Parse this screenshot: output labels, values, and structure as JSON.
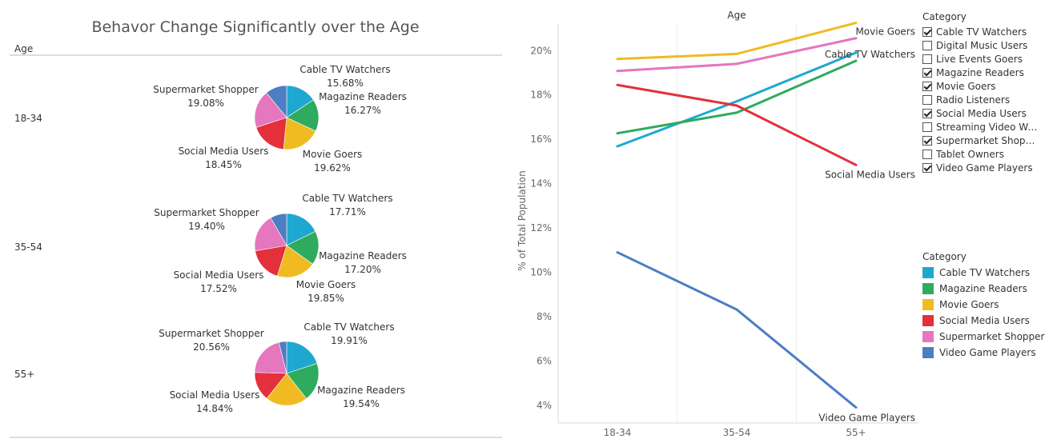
{
  "left_panel": {
    "title": "Behavor Change Significantly over the Age",
    "row_header": "Age"
  },
  "chart_data": [
    {
      "type": "pie",
      "title": "Behavor Change Significantly over the Age",
      "rows": [
        {
          "age": "18-34",
          "slices": [
            {
              "category": "Cable TV Watchers",
              "value": 15.68,
              "label": "15.68%"
            },
            {
              "category": "Magazine Readers",
              "value": 16.27,
              "label": "16.27%"
            },
            {
              "category": "Movie Goers",
              "value": 19.62,
              "label": "19.62%"
            },
            {
              "category": "Social Media Users",
              "value": 18.45,
              "label": "18.45%"
            },
            {
              "category": "Supermarket Shopper",
              "value": 19.08,
              "label": "19.08%"
            },
            {
              "category": "Video Game Players",
              "value": 10.9,
              "label": ""
            }
          ]
        },
        {
          "age": "35-54",
          "slices": [
            {
              "category": "Cable TV Watchers",
              "value": 17.71,
              "label": "17.71%"
            },
            {
              "category": "Magazine Readers",
              "value": 17.2,
              "label": "17.20%"
            },
            {
              "category": "Movie Goers",
              "value": 19.85,
              "label": "19.85%"
            },
            {
              "category": "Social Media Users",
              "value": 17.52,
              "label": "17.52%"
            },
            {
              "category": "Supermarket Shopper",
              "value": 19.4,
              "label": "19.40%"
            },
            {
              "category": "Video Game Players",
              "value": 8.32,
              "label": ""
            }
          ]
        },
        {
          "age": "55+",
          "slices": [
            {
              "category": "Cable TV Watchers",
              "value": 19.91,
              "label": "19.91%"
            },
            {
              "category": "Magazine Readers",
              "value": 19.54,
              "label": "19.54%"
            },
            {
              "category": "Movie Goers",
              "value": 21.25,
              "label": ""
            },
            {
              "category": "Social Media Users",
              "value": 14.84,
              "label": "14.84%"
            },
            {
              "category": "Supermarket Shopper",
              "value": 20.56,
              "label": "20.56%"
            },
            {
              "category": "Video Game Players",
              "value": 3.9,
              "label": ""
            }
          ]
        }
      ]
    },
    {
      "type": "line",
      "title": "Age",
      "xlabel": "",
      "ylabel": "% of Total Population",
      "categories": [
        "18-34",
        "35-54",
        "55+"
      ],
      "ylim": [
        3.2,
        21.2
      ],
      "yticks": [
        4,
        6,
        8,
        10,
        12,
        14,
        16,
        18,
        20
      ],
      "ytick_labels": [
        "4%",
        "6%",
        "8%",
        "10%",
        "12%",
        "14%",
        "16%",
        "18%",
        "20%"
      ],
      "grid": "vertical",
      "series": [
        {
          "name": "Cable TV Watchers",
          "values": [
            15.68,
            17.71,
            19.91
          ],
          "end_label": "Cable TV Watchers"
        },
        {
          "name": "Magazine Readers",
          "values": [
            16.27,
            17.2,
            19.54
          ],
          "end_label": ""
        },
        {
          "name": "Movie Goers",
          "values": [
            19.62,
            19.85,
            21.25
          ],
          "end_label": "Movie Goers"
        },
        {
          "name": "Social Media Users",
          "values": [
            18.45,
            17.52,
            14.84
          ],
          "end_label": "Social Media Users"
        },
        {
          "name": "Supermarket Shopper",
          "values": [
            19.08,
            19.4,
            20.56
          ],
          "end_label": ""
        },
        {
          "name": "Video Game Players",
          "values": [
            10.9,
            8.32,
            3.9
          ],
          "end_label": "Video Game Players"
        }
      ]
    }
  ],
  "colors": {
    "Cable TV Watchers": "#1ea8cf",
    "Magazine Readers": "#2eab5e",
    "Movie Goers": "#f0bb22",
    "Social Media Users": "#e3303a",
    "Supermarket Shopper": "#e477bd",
    "Video Game Players": "#4b7ec3"
  },
  "filter": {
    "title": "Category",
    "items": [
      {
        "label": "Cable TV Watchers",
        "checked": true
      },
      {
        "label": "Digital Music Users",
        "checked": false
      },
      {
        "label": "Live Events Goers",
        "checked": false
      },
      {
        "label": "Magazine Readers",
        "checked": true
      },
      {
        "label": "Movie Goers",
        "checked": true
      },
      {
        "label": "Radio Listeners",
        "checked": false
      },
      {
        "label": "Social Media Users",
        "checked": true
      },
      {
        "label": "Streaming Video Wat..",
        "checked": false
      },
      {
        "label": "Supermarket Shopper",
        "checked": true
      },
      {
        "label": "Tablet Owners",
        "checked": false
      },
      {
        "label": "Video Game Players",
        "checked": true
      }
    ]
  },
  "legend": {
    "title": "Category",
    "items": [
      "Cable TV Watchers",
      "Magazine Readers",
      "Movie Goers",
      "Social Media Users",
      "Supermarket Shopper",
      "Video Game Players"
    ]
  }
}
